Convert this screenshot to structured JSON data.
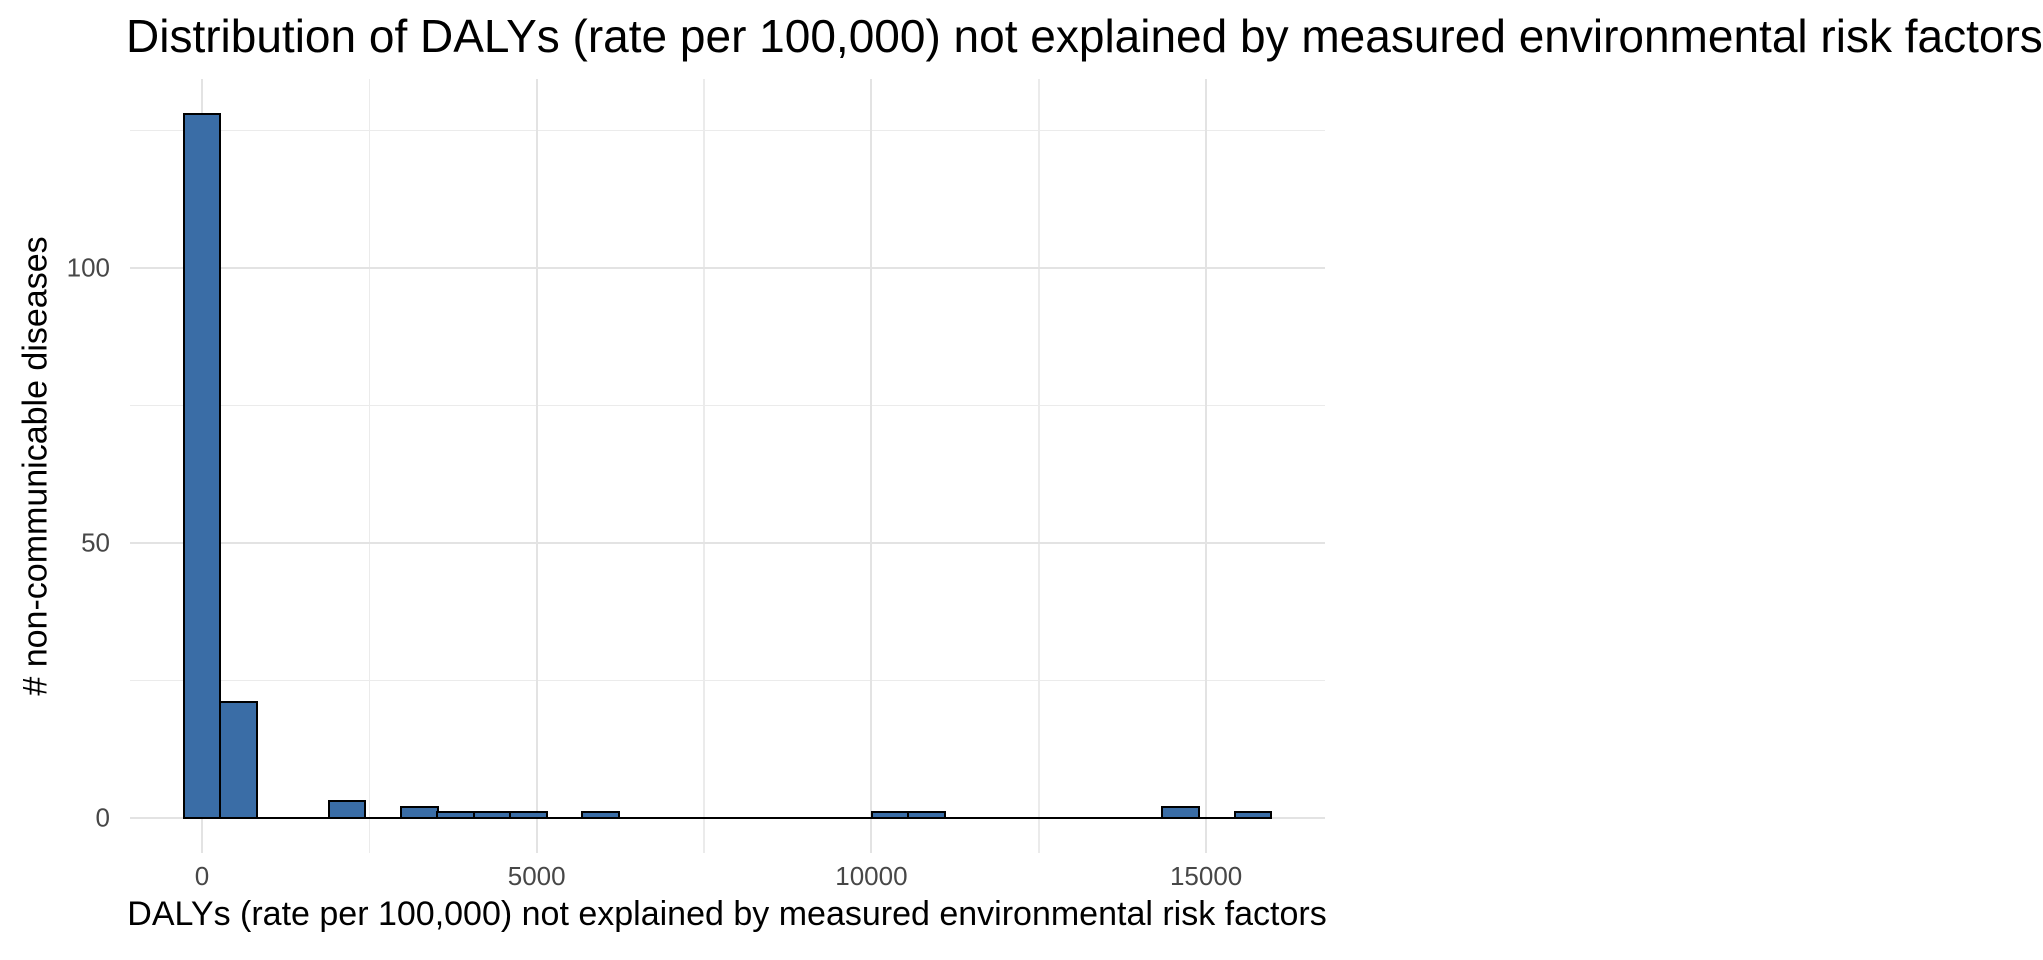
{
  "chart_data": {
    "type": "bar",
    "variant": "histogram",
    "title": "Distribution of DALYs (rate per 100,000) not explained by measured environmental risk factors",
    "xlabel": "DALYs (rate per 100,000) not explained by measured environmental risk factors",
    "ylabel": "# non-communicable diseases",
    "x_tick_labels": [
      "0",
      "5000",
      "10000",
      "15000"
    ],
    "x_tick_values": [
      0,
      5000,
      10000,
      15000
    ],
    "x_minor_values": [
      2500,
      7500,
      12500
    ],
    "y_tick_labels": [
      "0",
      "50",
      "100"
    ],
    "y_tick_values": [
      0,
      50,
      100
    ],
    "y_minor_values": [
      25,
      75,
      125
    ],
    "xlim": [
      -1080,
      16780
    ],
    "ylim": [
      -6.4,
      134.4
    ],
    "bin_width": 541.4,
    "bins": [
      {
        "x0": -271,
        "x1": 271,
        "count": 128
      },
      {
        "x0": 271,
        "x1": 812,
        "count": 21
      },
      {
        "x0": 1895,
        "x1": 2436,
        "count": 3
      },
      {
        "x0": 2978,
        "x1": 3519,
        "count": 2
      },
      {
        "x0": 3519,
        "x1": 4060,
        "count": 1
      },
      {
        "x0": 4060,
        "x1": 4602,
        "count": 1
      },
      {
        "x0": 4602,
        "x1": 5143,
        "count": 1
      },
      {
        "x0": 5685,
        "x1": 6226,
        "count": 1
      },
      {
        "x0": 10016,
        "x1": 10557,
        "count": 1
      },
      {
        "x0": 10557,
        "x1": 11099,
        "count": 1
      },
      {
        "x0": 14347,
        "x1": 14888,
        "count": 2
      },
      {
        "x0": 15430,
        "x1": 15971,
        "count": 1
      }
    ],
    "zero_line_range": [
      -271,
      15971
    ],
    "total_count": 163,
    "grid": "major and minor gridlines, both axes, no axis lines or ticks",
    "legend": "none",
    "colors": {
      "background": "#ffffff",
      "bar_fill": "#3a6da6",
      "bar_stroke": "#000000",
      "grid_major": "#e3e3e3",
      "grid_minor": "#ebebeb",
      "tick_label": "#474747",
      "title_text": "#000000"
    }
  }
}
